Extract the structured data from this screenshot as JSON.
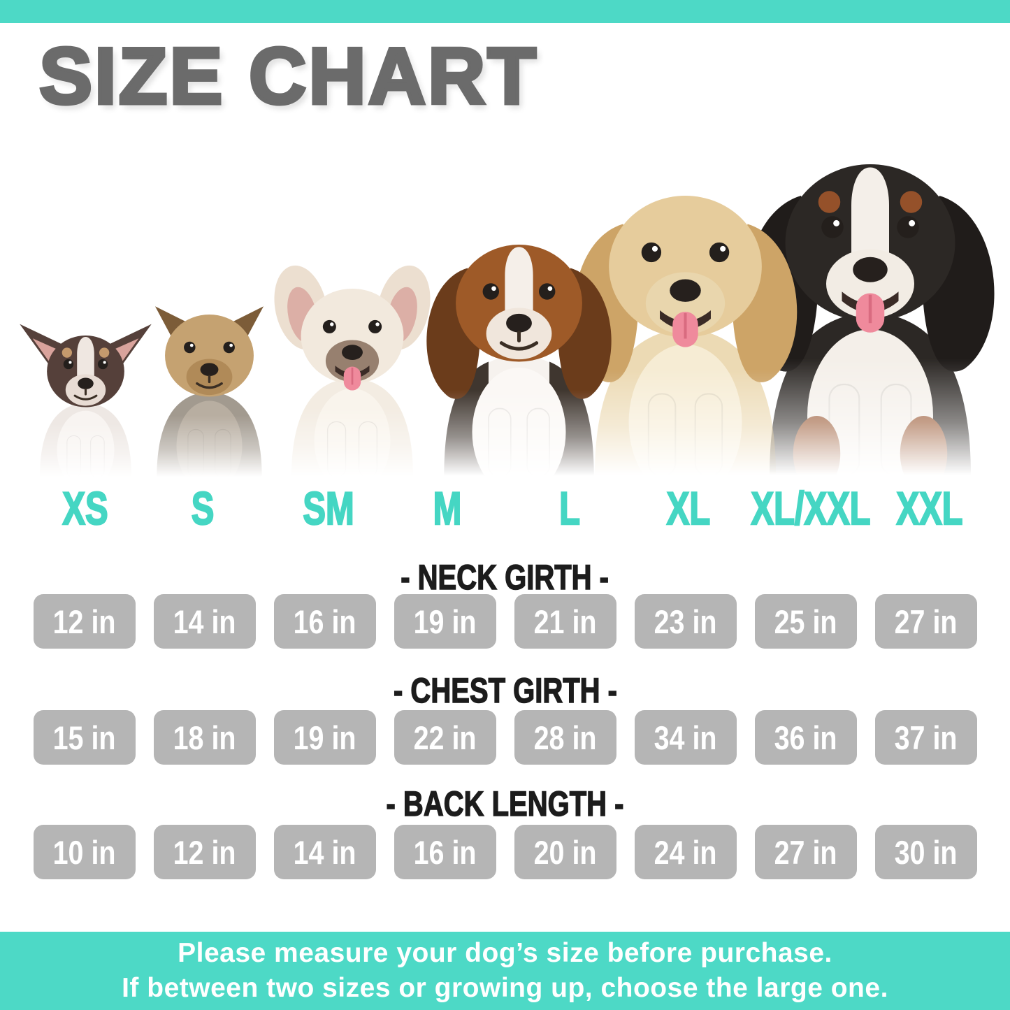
{
  "title": "SIZE CHART",
  "colors": {
    "accent_teal": "#4DD9C6",
    "size_label_teal": "#45D6C3",
    "title_gray": "#6B6B6B",
    "value_box_gray": "#B5B5B5",
    "heading_black": "#1C1C1C",
    "value_text_white": "#FFFFFF"
  },
  "size_labels": [
    "XS",
    "S",
    "SM",
    "M",
    "L",
    "XL",
    "XL/XXL",
    "XXL"
  ],
  "dogs": [
    {
      "breed": "Chihuahua",
      "icon": "chihuahua-dog-photo"
    },
    {
      "breed": "Yorkshire Terrier",
      "icon": "yorkshire-terrier-dog-photo"
    },
    {
      "breed": "French Bulldog",
      "icon": "french-bulldog-dog-photo"
    },
    {
      "breed": "Beagle",
      "icon": "beagle-dog-photo"
    },
    {
      "breed": "Golden Retriever",
      "icon": "golden-retriever-dog-photo"
    },
    {
      "breed": "Bernese Mountain Dog",
      "icon": "bernese-mountain-dog-photo"
    }
  ],
  "sections": [
    {
      "key": "neck",
      "heading": "- NECK GIRTH -",
      "values": [
        "12 in",
        "14 in",
        "16 in",
        "19 in",
        "21 in",
        "23 in",
        "25 in",
        "27 in"
      ]
    },
    {
      "key": "chest",
      "heading": "- CHEST GIRTH -",
      "values": [
        "15 in",
        "18 in",
        "19 in",
        "22 in",
        "28 in",
        "34 in",
        "36 in",
        "37 in"
      ]
    },
    {
      "key": "back",
      "heading": "- BACK LENGTH -",
      "values": [
        "10 in",
        "12 in",
        "14 in",
        "16 in",
        "20 in",
        "24 in",
        "27 in",
        "30 in"
      ]
    }
  ],
  "footer": {
    "line1": "Please measure your dog’s size before purchase.",
    "line2": "If between two sizes or growing up, choose the large one."
  },
  "chart_data": {
    "type": "table",
    "title": "SIZE CHART",
    "categories": [
      "XS",
      "S",
      "SM",
      "M",
      "L",
      "XL",
      "XL/XXL",
      "XXL"
    ],
    "series": [
      {
        "name": "Neck Girth (in)",
        "values": [
          12,
          14,
          16,
          19,
          21,
          23,
          25,
          27
        ]
      },
      {
        "name": "Chest Girth (in)",
        "values": [
          15,
          18,
          19,
          22,
          28,
          34,
          36,
          37
        ]
      },
      {
        "name": "Back Length (in)",
        "values": [
          10,
          12,
          14,
          16,
          20,
          24,
          27,
          30
        ]
      }
    ],
    "breeds_pictured": [
      "Chihuahua",
      "Yorkshire Terrier",
      "French Bulldog",
      "Beagle",
      "Golden Retriever",
      "Bernese Mountain Dog"
    ]
  }
}
